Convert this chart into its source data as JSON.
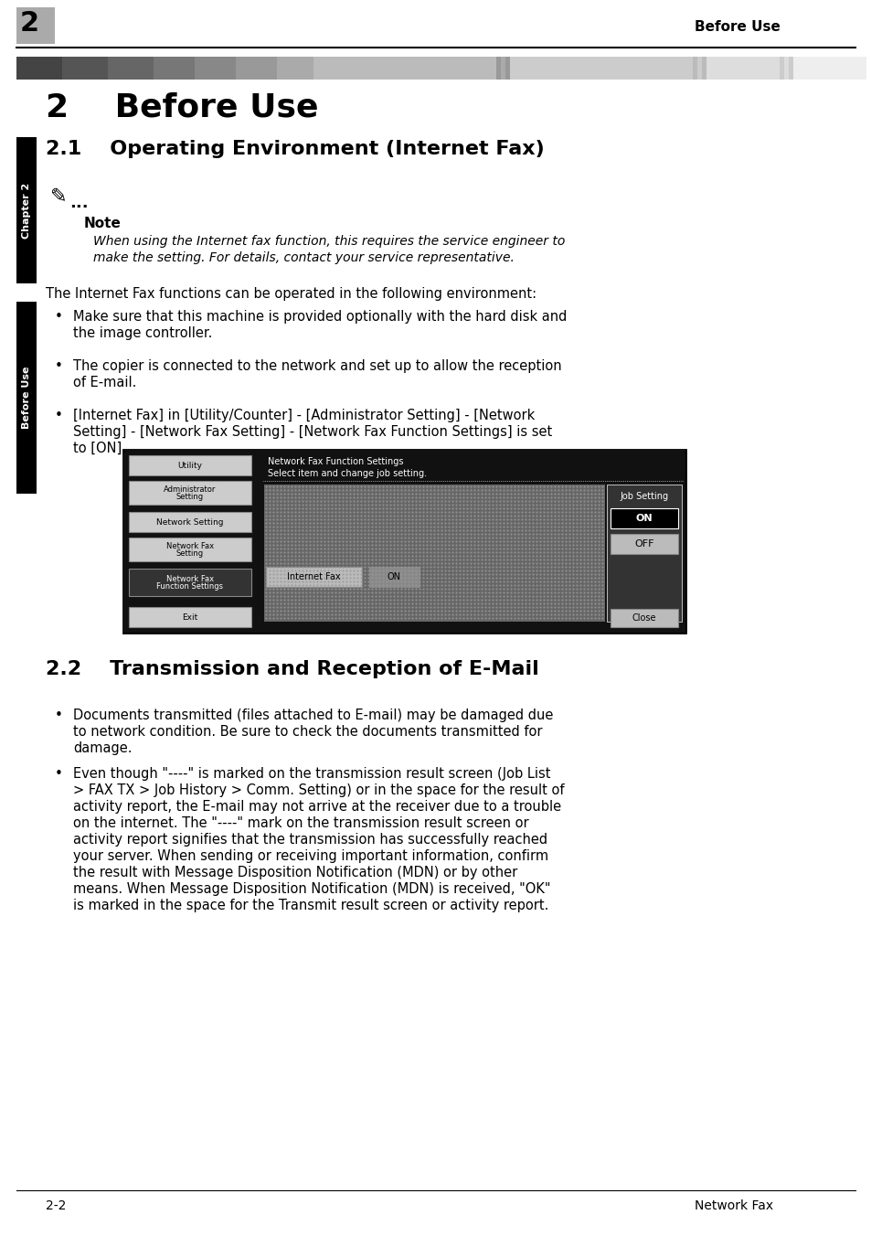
{
  "page_bg": "#ffffff",
  "header_number": "2",
  "header_number_bg": "#aaaaaa",
  "header_right_text": "Before Use",
  "chapter_label": "Chapter 2",
  "side_label": "Before Use",
  "chapter2_title": "2    Before Use",
  "section21_title": "2.1    Operating Environment (Internet Fax)",
  "note_label": "Note",
  "note_line1": "When using the Internet fax function, this requires the service engineer to",
  "note_line2": "make the setting. For details, contact your service representative.",
  "intro_text": "The Internet Fax functions can be operated in the following environment:",
  "bullet21_1a": "Make sure that this machine is provided optionally with the hard disk and",
  "bullet21_1b": "the image controller.",
  "bullet21_2a": "The copier is connected to the network and set up to allow the reception",
  "bullet21_2b": "of E-mail.",
  "bullet21_3a": "[Internet Fax] in [Utility/Counter] - [Administrator Setting] - [Network",
  "bullet21_3b": "Setting] - [Network Fax Setting] - [Network Fax Function Settings] is set",
  "bullet21_3c": "to [ON].",
  "section22_title": "2.2    Transmission and Reception of E-Mail",
  "bullet22_1a": "Documents transmitted (files attached to E-mail) may be damaged due",
  "bullet22_1b": "to network condition. Be sure to check the documents transmitted for",
  "bullet22_1c": "damage.",
  "bullet22_2a": "Even though \"----\" is marked on the transmission result screen (Job List",
  "bullet22_2b": "> FAX TX > Job History > Comm. Setting) or in the space for the result of",
  "bullet22_2c": "activity report, the E-mail may not arrive at the receiver due to a trouble",
  "bullet22_2d": "on the internet. The \"----\" mark on the transmission result screen or",
  "bullet22_2e": "activity report signifies that the transmission has successfully reached",
  "bullet22_2f": "your server. When sending or receiving important information, confirm",
  "bullet22_2g": "the result with Message Disposition Notification (MDN) or by other",
  "bullet22_2h": "means. When Message Disposition Notification (MDN) is received, \"OK\"",
  "bullet22_2i": "is marked in the space for the Transmit result screen or activity report.",
  "footer_left": "2-2",
  "footer_right": "Network Fax",
  "screen_title1": "Network Fax Function Settings",
  "screen_title2": "Select item and change job setting.",
  "btn_utility": "Utility",
  "btn_admin1": "Administrator",
  "btn_admin2": "Setting",
  "btn_network": "Network Setting",
  "btn_netfax1": "Network Fax",
  "btn_netfax2": "Setting",
  "btn_netfaxfn1": "Network Fax",
  "btn_netfaxfn2": "Function Settings",
  "btn_exit": "Exit",
  "btn_jobsetting": "Job Setting",
  "btn_on": "ON",
  "btn_off": "OFF",
  "btn_close": "Close",
  "btn_inetfax": "Internet Fax",
  "btn_on2": "ON",
  "stripes": [
    [
      18,
      50,
      "#444444"
    ],
    [
      68,
      50,
      "#555555"
    ],
    [
      118,
      50,
      "#666666"
    ],
    [
      168,
      45,
      "#777777"
    ],
    [
      213,
      45,
      "#888888"
    ],
    [
      258,
      45,
      "#999999"
    ],
    [
      303,
      40,
      "#aaaaaa"
    ],
    [
      343,
      200,
      "#bbbbbb"
    ],
    [
      543,
      5,
      "#999999"
    ],
    [
      548,
      5,
      "#aaaaaa"
    ],
    [
      553,
      5,
      "#999999"
    ],
    [
      558,
      200,
      "#cccccc"
    ],
    [
      758,
      5,
      "#bbbbbb"
    ],
    [
      763,
      5,
      "#cccccc"
    ],
    [
      768,
      5,
      "#bbbbbb"
    ],
    [
      773,
      80,
      "#dddddd"
    ],
    [
      853,
      5,
      "#cccccc"
    ],
    [
      858,
      5,
      "#dddddd"
    ],
    [
      863,
      5,
      "#cccccc"
    ],
    [
      868,
      80,
      "#eeeeee"
    ]
  ]
}
